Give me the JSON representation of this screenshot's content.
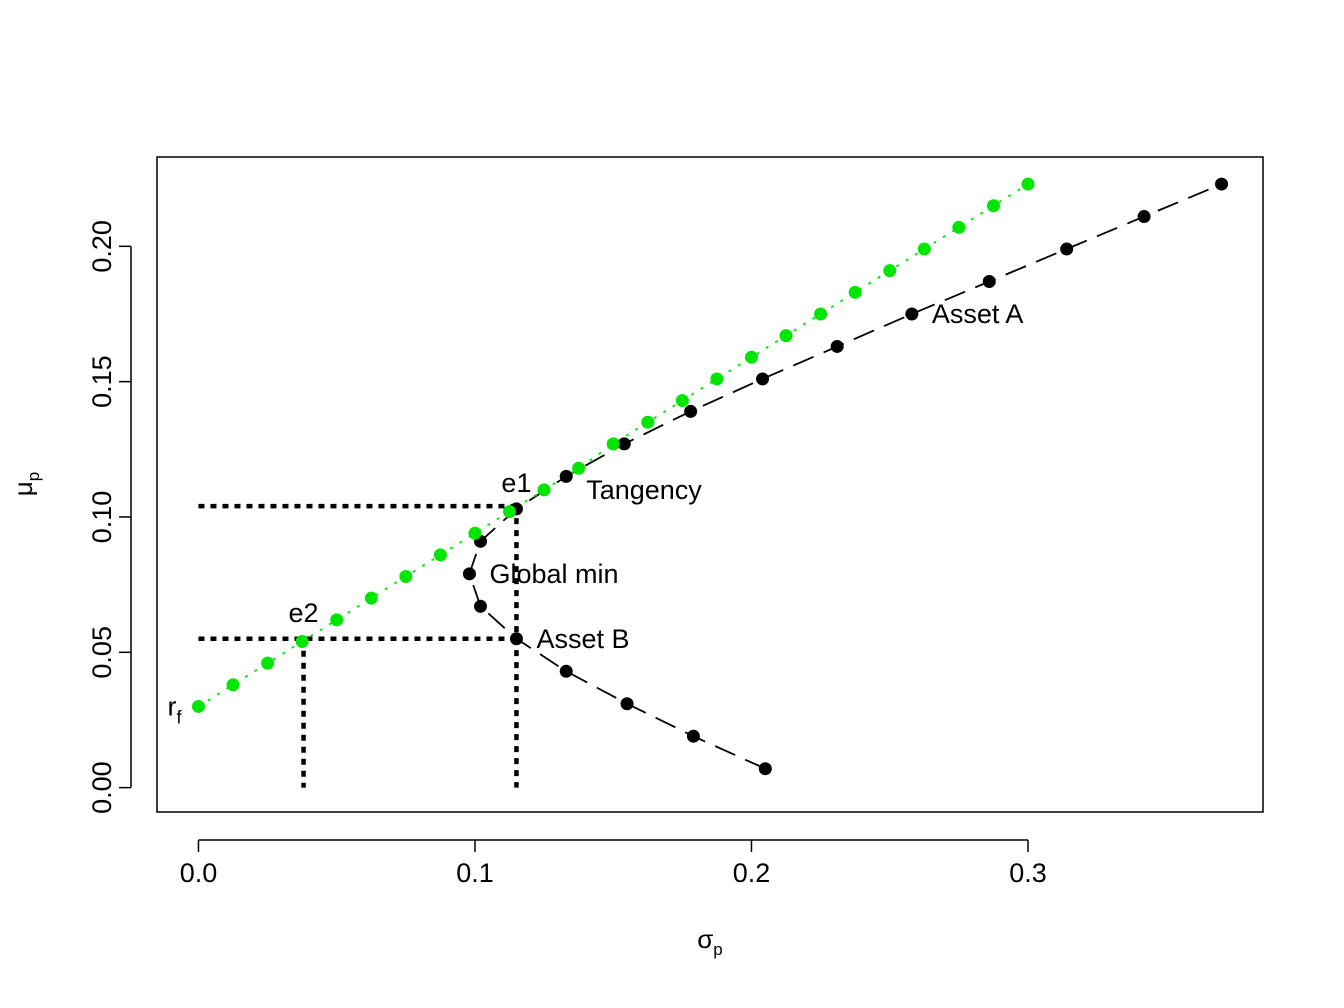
{
  "chart_data": {
    "type": "scatter",
    "title": "",
    "xlabel": "σ",
    "xlabel_sub": "p",
    "ylabel": "μ",
    "ylabel_sub": "p",
    "xlim": [
      -0.015,
      0.385
    ],
    "ylim": [
      -0.009,
      0.233
    ],
    "x_ticks": [
      0.0,
      0.1,
      0.2,
      0.3
    ],
    "x_tick_labels": [
      "0.0",
      "0.1",
      "0.2",
      "0.3"
    ],
    "y_ticks": [
      0.0,
      0.05,
      0.1,
      0.15,
      0.2
    ],
    "y_tick_labels": [
      "0.00",
      "0.05",
      "0.10",
      "0.15",
      "0.20"
    ],
    "grid": false,
    "legend": "none",
    "series": [
      {
        "color": "#000000",
        "line_style": "dashed",
        "points": [
          {
            "x": 0.205,
            "y": 0.007
          },
          {
            "x": 0.179,
            "y": 0.019
          },
          {
            "x": 0.155,
            "y": 0.031
          },
          {
            "x": 0.133,
            "y": 0.043
          },
          {
            "x": 0.115,
            "y": 0.055
          },
          {
            "x": 0.102,
            "y": 0.067
          },
          {
            "x": 0.098,
            "y": 0.079
          },
          {
            "x": 0.102,
            "y": 0.091
          },
          {
            "x": 0.115,
            "y": 0.103
          },
          {
            "x": 0.133,
            "y": 0.115
          },
          {
            "x": 0.154,
            "y": 0.127
          },
          {
            "x": 0.178,
            "y": 0.139
          },
          {
            "x": 0.204,
            "y": 0.151
          },
          {
            "x": 0.231,
            "y": 0.163
          },
          {
            "x": 0.258,
            "y": 0.175
          },
          {
            "x": 0.286,
            "y": 0.187
          },
          {
            "x": 0.314,
            "y": 0.199
          },
          {
            "x": 0.342,
            "y": 0.211
          },
          {
            "x": 0.37,
            "y": 0.223
          }
        ]
      },
      {
        "color": "#00e600",
        "line_style": "dotted",
        "points": [
          {
            "x": 0.0,
            "y": 0.03
          },
          {
            "x": 0.0125,
            "y": 0.038
          },
          {
            "x": 0.025,
            "y": 0.046
          },
          {
            "x": 0.0375,
            "y": 0.054
          },
          {
            "x": 0.05,
            "y": 0.062
          },
          {
            "x": 0.0625,
            "y": 0.07
          },
          {
            "x": 0.075,
            "y": 0.078
          },
          {
            "x": 0.0875,
            "y": 0.086
          },
          {
            "x": 0.1,
            "y": 0.094
          },
          {
            "x": 0.1125,
            "y": 0.102
          },
          {
            "x": 0.125,
            "y": 0.11
          },
          {
            "x": 0.1375,
            "y": 0.118
          },
          {
            "x": 0.15,
            "y": 0.127
          },
          {
            "x": 0.1625,
            "y": 0.135
          },
          {
            "x": 0.175,
            "y": 0.143
          },
          {
            "x": 0.1875,
            "y": 0.151
          },
          {
            "x": 0.2,
            "y": 0.159
          },
          {
            "x": 0.2125,
            "y": 0.167
          },
          {
            "x": 0.225,
            "y": 0.175
          },
          {
            "x": 0.2375,
            "y": 0.183
          },
          {
            "x": 0.25,
            "y": 0.191
          },
          {
            "x": 0.2625,
            "y": 0.199
          },
          {
            "x": 0.275,
            "y": 0.207
          },
          {
            "x": 0.2875,
            "y": 0.215
          },
          {
            "x": 0.3,
            "y": 0.223
          }
        ]
      }
    ],
    "reference_lines": [
      {
        "x1": 0.0,
        "y1": 0.104,
        "x2": 0.115,
        "y2": 0.104
      },
      {
        "x1": 0.115,
        "y1": 0.104,
        "x2": 0.115,
        "y2": 0.0
      },
      {
        "x1": 0.0,
        "y1": 0.055,
        "x2": 0.115,
        "y2": 0.055
      },
      {
        "x1": 0.038,
        "y1": 0.055,
        "x2": 0.038,
        "y2": 0.0
      }
    ],
    "annotations": [
      {
        "text": "Asset A",
        "x": 0.258,
        "y": 0.175,
        "anchor": "right"
      },
      {
        "text": "Asset B",
        "x": 0.115,
        "y": 0.055,
        "anchor": "right"
      },
      {
        "text": "Global min",
        "x": 0.098,
        "y": 0.079,
        "anchor": "right"
      },
      {
        "text": "Tangency",
        "x": 0.133,
        "y": 0.11,
        "anchor": "right"
      },
      {
        "text": "e1",
        "x": 0.115,
        "y": 0.103,
        "anchor": "above"
      },
      {
        "text": "e2",
        "x": 0.038,
        "y": 0.055,
        "anchor": "above"
      },
      {
        "text": "r",
        "sub": "f",
        "x": 0.0,
        "y": 0.03,
        "anchor": "left"
      }
    ]
  }
}
